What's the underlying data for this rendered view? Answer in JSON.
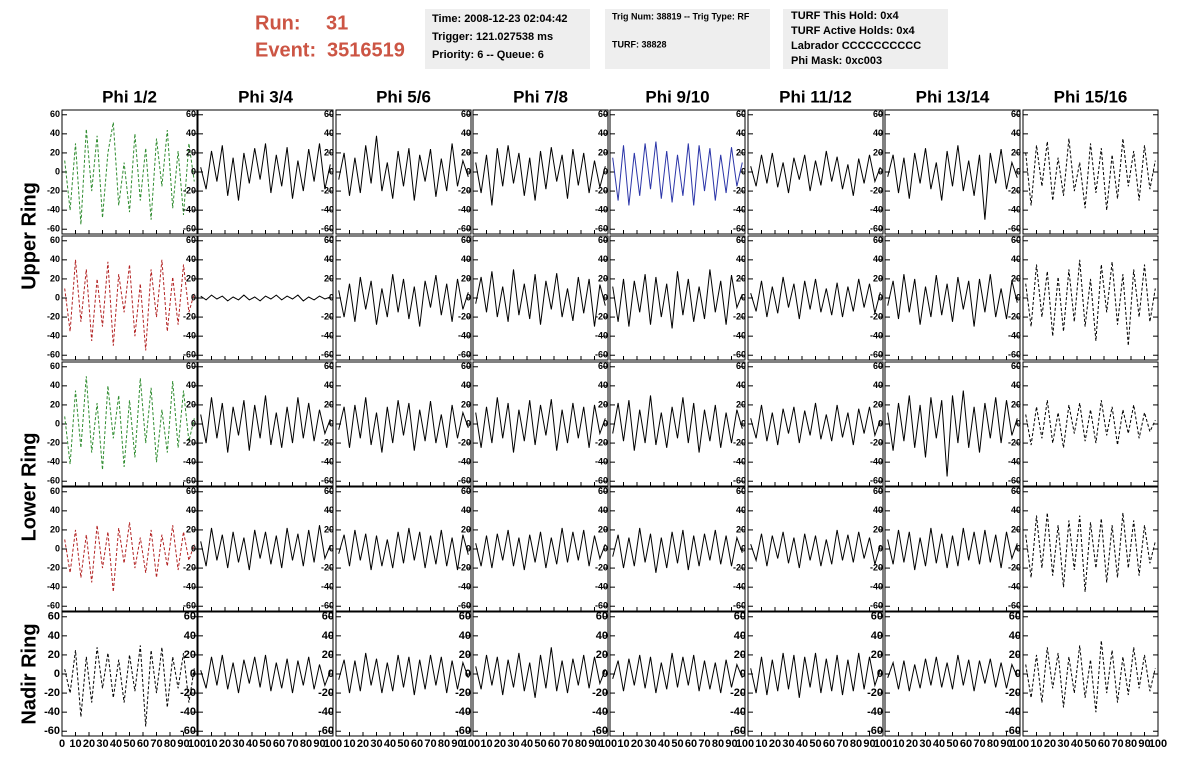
{
  "header": {
    "run_label": "Run:",
    "run": "31",
    "event_label": "Event:",
    "event": "3516519"
  },
  "info": [
    [
      "Time: 2008-12-23 02:04:42",
      "Trigger: 121.027538 ms",
      "Priority: 6 -- Queue: 6"
    ],
    [
      "Trig Num: 38819 -- Trig Type: RF",
      "TURF: 38828"
    ],
    [
      "TURF This Hold: 0x4",
      "TURF Active Holds: 0x4",
      "Labrador CCCCCCCCCC",
      "Phi Mask: 0xc003"
    ]
  ],
  "columns": [
    "Phi 1/2",
    "Phi 3/4",
    "Phi 5/6",
    "Phi 7/8",
    "Phi 9/10",
    "Phi 11/12",
    "Phi 13/14",
    "Phi 15/16"
  ],
  "row_labels": [
    "Upper Ring",
    "Lower Ring",
    "Nadir Ring"
  ],
  "axes": {
    "x": [
      2,
      6,
      10,
      14,
      18,
      22,
      26,
      30,
      34,
      38,
      42,
      46,
      50,
      54,
      58,
      62,
      66,
      70,
      74,
      78,
      82,
      86,
      90,
      94,
      98
    ],
    "xlim": [
      0,
      100
    ],
    "xticks": [
      0,
      10,
      20,
      30,
      40,
      50,
      60,
      70,
      80,
      90,
      100
    ],
    "ylim": [
      -65,
      65
    ],
    "yticks": [
      -60,
      -40,
      -20,
      0,
      20,
      40,
      60
    ]
  },
  "chart_data": [
    {
      "type": "line",
      "color": "#2e8b2e",
      "dashed": true,
      "values": [
        12,
        -40,
        30,
        -55,
        45,
        -20,
        38,
        -48,
        20,
        52,
        -35,
        10,
        -42,
        40,
        -30,
        25,
        -50,
        35,
        -15,
        44,
        -38,
        22,
        -45,
        30,
        -10
      ]
    },
    {
      "type": "line",
      "color": "#000000",
      "dashed": false,
      "values": [
        5,
        -18,
        22,
        -10,
        28,
        -25,
        15,
        -30,
        20,
        -12,
        25,
        -8,
        30,
        -22,
        18,
        -15,
        26,
        -28,
        12,
        -20,
        24,
        -10,
        30,
        -18,
        8
      ]
    },
    {
      "type": "line",
      "color": "#000000",
      "dashed": false,
      "values": [
        -8,
        20,
        -25,
        15,
        -22,
        28,
        -12,
        38,
        -20,
        10,
        -28,
        22,
        -15,
        25,
        -30,
        18,
        -10,
        24,
        -26,
        14,
        -20,
        30,
        -15,
        12,
        -5
      ]
    },
    {
      "type": "line",
      "color": "#000000",
      "dashed": false,
      "values": [
        10,
        -22,
        18,
        -35,
        25,
        -15,
        28,
        -12,
        20,
        -25,
        15,
        -30,
        22,
        -18,
        26,
        -10,
        18,
        -28,
        24,
        -14,
        20,
        -22,
        12,
        -16,
        6
      ]
    },
    {
      "type": "line",
      "color": "#2b35a8",
      "dashed": false,
      "values": [
        15,
        -30,
        28,
        -35,
        20,
        -25,
        30,
        -18,
        32,
        -28,
        22,
        -32,
        18,
        -25,
        30,
        -35,
        28,
        -20,
        25,
        -30,
        18,
        -22,
        26,
        -15,
        10
      ]
    },
    {
      "type": "line",
      "color": "#000000",
      "dashed": false,
      "values": [
        6,
        -15,
        18,
        -12,
        20,
        -16,
        10,
        -22,
        15,
        -8,
        18,
        -20,
        12,
        -14,
        22,
        -10,
        16,
        -18,
        8,
        -25,
        14,
        -12,
        18,
        -10,
        5
      ]
    },
    {
      "type": "line",
      "color": "#000000",
      "dashed": false,
      "values": [
        -5,
        18,
        -22,
        15,
        -28,
        20,
        -12,
        25,
        -18,
        10,
        -30,
        22,
        -15,
        28,
        -20,
        12,
        -25,
        18,
        -50,
        20,
        -12,
        24,
        -18,
        10,
        -6
      ]
    },
    {
      "type": "line",
      "color": "#000000",
      "dashed": true,
      "values": [
        20,
        -35,
        28,
        -15,
        32,
        -30,
        15,
        -25,
        35,
        -20,
        10,
        -38,
        30,
        -22,
        25,
        -40,
        18,
        -28,
        35,
        -15,
        22,
        -30,
        28,
        -18,
        12
      ]
    },
    {
      "type": "line",
      "color": "#b22222",
      "dashed": true,
      "values": [
        10,
        -35,
        40,
        -25,
        30,
        -45,
        20,
        -30,
        38,
        -50,
        25,
        -15,
        35,
        -40,
        15,
        -55,
        30,
        -20,
        40,
        -35,
        22,
        -28,
        35,
        -15,
        5
      ]
    },
    {
      "type": "line",
      "color": "#000000",
      "dashed": false,
      "values": [
        2,
        -2,
        3,
        -1,
        2,
        -3,
        1,
        -2,
        3,
        -2,
        1,
        -3,
        2,
        -1,
        3,
        -2,
        2,
        -1,
        3,
        -3,
        1,
        -2,
        2,
        -1,
        1
      ]
    },
    {
      "type": "line",
      "color": "#000000",
      "dashed": false,
      "values": [
        8,
        -20,
        15,
        -25,
        22,
        -12,
        18,
        -28,
        10,
        -20,
        25,
        -15,
        20,
        -22,
        12,
        -30,
        18,
        -10,
        24,
        -18,
        15,
        -25,
        20,
        -12,
        6
      ]
    },
    {
      "type": "line",
      "color": "#000000",
      "dashed": false,
      "values": [
        -6,
        22,
        -15,
        28,
        -20,
        12,
        -25,
        30,
        -18,
        15,
        -22,
        25,
        -28,
        18,
        -12,
        26,
        -20,
        10,
        -24,
        22,
        -16,
        20,
        -30,
        14,
        -8
      ]
    },
    {
      "type": "line",
      "color": "#000000",
      "dashed": false,
      "values": [
        12,
        -25,
        20,
        -30,
        18,
        -15,
        25,
        -28,
        22,
        -20,
        15,
        -32,
        28,
        -18,
        20,
        -25,
        12,
        -22,
        30,
        -15,
        18,
        -28,
        24,
        -10,
        4
      ]
    },
    {
      "type": "line",
      "color": "#000000",
      "dashed": false,
      "values": [
        5,
        -14,
        18,
        -20,
        12,
        -16,
        22,
        -10,
        15,
        -22,
        18,
        -12,
        20,
        -15,
        10,
        -18,
        16,
        -20,
        12,
        -14,
        20,
        -10,
        15,
        -16,
        6
      ]
    },
    {
      "type": "line",
      "color": "#000000",
      "dashed": false,
      "values": [
        -8,
        18,
        -22,
        25,
        -15,
        20,
        -28,
        12,
        -20,
        24,
        -18,
        15,
        -25,
        22,
        -12,
        18,
        -30,
        20,
        -15,
        25,
        -20,
        10,
        -22,
        18,
        -5
      ]
    },
    {
      "type": "line",
      "color": "#000000",
      "dashed": true,
      "values": [
        15,
        -30,
        35,
        -20,
        28,
        -40,
        22,
        -35,
        30,
        -25,
        40,
        -30,
        20,
        -45,
        35,
        -15,
        38,
        -28,
        25,
        -50,
        30,
        -20,
        35,
        -25,
        10
      ]
    },
    {
      "type": "line",
      "color": "#2e8b2e",
      "dashed": true,
      "values": [
        8,
        -42,
        35,
        -25,
        50,
        -30,
        22,
        -48,
        40,
        -15,
        30,
        -45,
        25,
        -35,
        48,
        -20,
        38,
        -40,
        15,
        -30,
        45,
        -25,
        35,
        -18,
        6
      ]
    },
    {
      "type": "line",
      "color": "#000000",
      "dashed": false,
      "values": [
        10,
        -20,
        28,
        -15,
        22,
        -30,
        18,
        -12,
        25,
        -28,
        20,
        -15,
        30,
        -22,
        12,
        -25,
        18,
        -20,
        28,
        -15,
        22,
        -18,
        15,
        -10,
        5
      ]
    },
    {
      "type": "line",
      "color": "#000000",
      "dashed": false,
      "values": [
        -6,
        18,
        -25,
        20,
        -15,
        28,
        -22,
        12,
        -30,
        18,
        -20,
        25,
        -12,
        22,
        -28,
        15,
        -18,
        24,
        -20,
        10,
        -25,
        20,
        -15,
        12,
        -4
      ]
    },
    {
      "type": "line",
      "color": "#000000",
      "dashed": false,
      "values": [
        12,
        -25,
        18,
        -20,
        28,
        -15,
        22,
        -30,
        15,
        -18,
        25,
        -22,
        20,
        -12,
        26,
        -28,
        15,
        -20,
        22,
        -15,
        18,
        -25,
        20,
        -10,
        6
      ]
    },
    {
      "type": "line",
      "color": "#000000",
      "dashed": false,
      "values": [
        -10,
        22,
        -18,
        25,
        -28,
        15,
        -20,
        30,
        -22,
        12,
        -25,
        18,
        -15,
        28,
        -20,
        22,
        -30,
        15,
        -18,
        20,
        -25,
        12,
        -20,
        15,
        -5
      ]
    },
    {
      "type": "line",
      "color": "#000000",
      "dashed": false,
      "values": [
        6,
        -15,
        20,
        -18,
        12,
        -22,
        16,
        -10,
        18,
        -20,
        14,
        -12,
        22,
        -16,
        10,
        -18,
        20,
        -14,
        12,
        -22,
        16,
        -10,
        18,
        -12,
        4
      ]
    },
    {
      "type": "line",
      "color": "#000000",
      "dashed": false,
      "values": [
        12,
        -28,
        22,
        -18,
        30,
        -25,
        20,
        -35,
        28,
        -15,
        25,
        -55,
        30,
        -20,
        35,
        -25,
        18,
        -30,
        22,
        -15,
        28,
        -20,
        25,
        -12,
        6
      ]
    },
    {
      "type": "line",
      "color": "#000000",
      "dashed": true,
      "values": [
        10,
        -22,
        18,
        -15,
        25,
        -20,
        12,
        -25,
        20,
        -10,
        22,
        -18,
        15,
        -20,
        25,
        -12,
        18,
        -22,
        15,
        -10,
        20,
        -15,
        12,
        -8,
        4
      ]
    },
    {
      "type": "line",
      "color": "#b22222",
      "dashed": true,
      "values": [
        10,
        -25,
        20,
        -30,
        15,
        -35,
        25,
        -20,
        18,
        -45,
        22,
        -15,
        28,
        -20,
        12,
        -25,
        20,
        -30,
        15,
        -18,
        25,
        -22,
        18,
        -12,
        5
      ]
    },
    {
      "type": "line",
      "color": "#000000",
      "dashed": false,
      "values": [
        8,
        -18,
        22,
        -12,
        15,
        -20,
        18,
        -14,
        12,
        -22,
        20,
        -10,
        18,
        -16,
        14,
        -20,
        22,
        -12,
        16,
        -18,
        20,
        -14,
        25,
        -10,
        4
      ]
    },
    {
      "type": "line",
      "color": "#000000",
      "dashed": false,
      "values": [
        -5,
        15,
        -18,
        20,
        -12,
        16,
        -22,
        14,
        -18,
        10,
        -20,
        18,
        -15,
        22,
        -12,
        18,
        -20,
        14,
        -16,
        20,
        -18,
        12,
        -22,
        15,
        -6
      ]
    },
    {
      "type": "line",
      "color": "#000000",
      "dashed": false,
      "values": [
        6,
        -18,
        14,
        -20,
        16,
        -12,
        20,
        -18,
        12,
        -22,
        15,
        -14,
        18,
        -20,
        12,
        -16,
        22,
        -14,
        18,
        -12,
        20,
        -18,
        14,
        -10,
        5
      ]
    },
    {
      "type": "line",
      "color": "#000000",
      "dashed": false,
      "values": [
        -8,
        15,
        -20,
        12,
        -18,
        22,
        -14,
        16,
        -25,
        12,
        -20,
        18,
        -15,
        20,
        -22,
        14,
        -18,
        16,
        -12,
        20,
        -16,
        14,
        -18,
        12,
        -4
      ]
    },
    {
      "type": "line",
      "color": "#000000",
      "dashed": false,
      "values": [
        5,
        -12,
        16,
        -18,
        14,
        -10,
        18,
        -15,
        12,
        -20,
        16,
        -12,
        14,
        -18,
        10,
        -16,
        20,
        -12,
        15,
        -14,
        18,
        -10,
        12,
        -16,
        4
      ]
    },
    {
      "type": "line",
      "color": "#000000",
      "dashed": false,
      "values": [
        10,
        -16,
        20,
        -14,
        18,
        -22,
        12,
        -18,
        22,
        -15,
        16,
        -20,
        14,
        -18,
        22,
        -12,
        18,
        -16,
        20,
        -14,
        15,
        -20,
        18,
        -10,
        6
      ]
    },
    {
      "type": "line",
      "color": "#000000",
      "dashed": true,
      "values": [
        15,
        -30,
        35,
        -20,
        38,
        -28,
        25,
        -40,
        30,
        -22,
        35,
        -45,
        28,
        -20,
        32,
        -35,
        25,
        -30,
        38,
        -20,
        30,
        -28,
        25,
        -15,
        8
      ]
    },
    {
      "type": "line",
      "color": "#000000",
      "dashed": true,
      "values": [
        5,
        -20,
        25,
        -45,
        18,
        -30,
        28,
        -15,
        22,
        -25,
        15,
        -30,
        20,
        -18,
        30,
        -55,
        25,
        -20,
        28,
        -35,
        18,
        -15,
        22,
        -30,
        6
      ]
    },
    {
      "type": "line",
      "color": "#000000",
      "dashed": false,
      "values": [
        4,
        -15,
        18,
        -12,
        20,
        -16,
        12,
        -20,
        15,
        -10,
        18,
        -14,
        20,
        -18,
        12,
        -15,
        16,
        -20,
        14,
        -12,
        18,
        -16,
        10,
        -12,
        3
      ]
    },
    {
      "type": "line",
      "color": "#000000",
      "dashed": false,
      "values": [
        -6,
        15,
        -20,
        14,
        -18,
        22,
        -12,
        16,
        -20,
        12,
        -18,
        20,
        -14,
        18,
        -22,
        15,
        -16,
        20,
        -12,
        18,
        -20,
        14,
        -16,
        12,
        -4
      ]
    },
    {
      "type": "line",
      "color": "#000000",
      "dashed": false,
      "values": [
        8,
        -16,
        20,
        -12,
        18,
        -22,
        15,
        -14,
        22,
        -18,
        12,
        -25,
        20,
        -15,
        28,
        -18,
        14,
        -20,
        16,
        -12,
        20,
        -15,
        18,
        -10,
        5
      ]
    },
    {
      "type": "line",
      "color": "#000000",
      "dashed": false,
      "values": [
        -5,
        14,
        -18,
        16,
        -12,
        20,
        -15,
        18,
        -20,
        12,
        -16,
        22,
        -14,
        18,
        -12,
        20,
        -18,
        14,
        -16,
        12,
        -20,
        15,
        -14,
        10,
        -4
      ]
    },
    {
      "type": "line",
      "color": "#000000",
      "dashed": false,
      "values": [
        6,
        -20,
        18,
        -22,
        15,
        -18,
        22,
        -16,
        20,
        -25,
        18,
        -14,
        22,
        -20,
        16,
        -18,
        20,
        -22,
        15,
        -18,
        22,
        -16,
        18,
        -12,
        5
      ]
    },
    {
      "type": "line",
      "color": "#000000",
      "dashed": false,
      "values": [
        -4,
        12,
        -16,
        14,
        -18,
        10,
        -15,
        16,
        -12,
        18,
        -14,
        12,
        -16,
        20,
        -12,
        15,
        -18,
        14,
        -10,
        16,
        -14,
        12,
        -15,
        10,
        -3
      ]
    },
    {
      "type": "line",
      "color": "#000000",
      "dashed": true,
      "values": [
        10,
        -25,
        20,
        -30,
        28,
        -15,
        22,
        -35,
        18,
        -20,
        30,
        -25,
        15,
        -40,
        35,
        -20,
        25,
        -30,
        18,
        -22,
        28,
        -15,
        20,
        -18,
        6
      ]
    }
  ]
}
